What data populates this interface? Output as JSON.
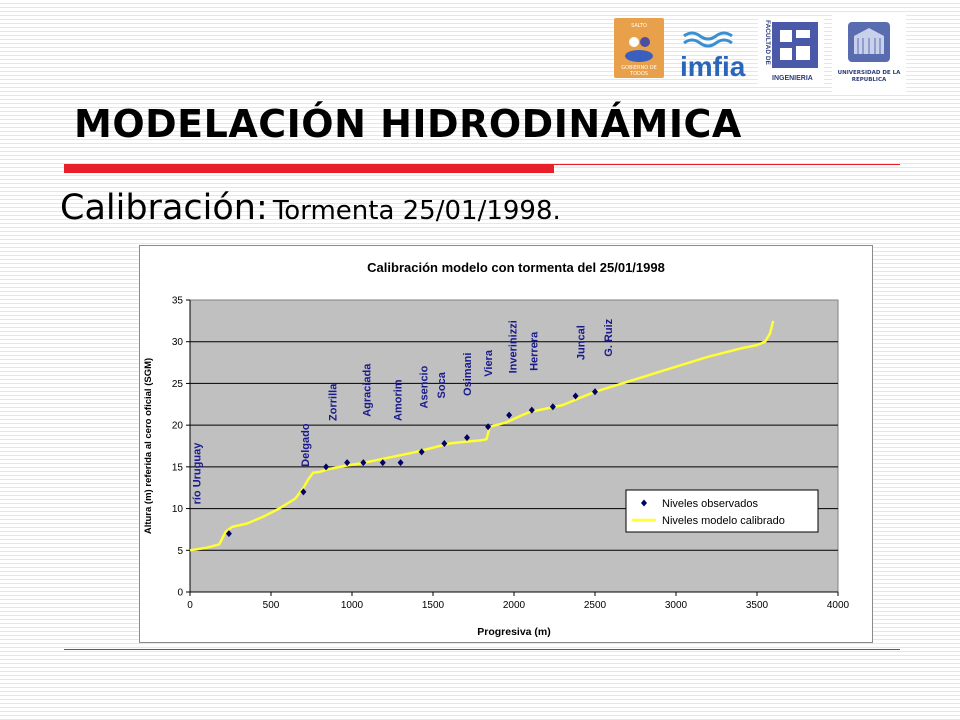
{
  "slide": {
    "title": "MODELACIÓN HIDRODINÁMICA",
    "subtitle_main": "Calibración:",
    "subtitle_detail": "Tormenta 25/01/1998."
  },
  "logos": {
    "salto_top": "SALTO",
    "salto_bottom": "GOBIERNO DE TODOS",
    "imfia": "imfia",
    "fing_side": "FACULTAD DE",
    "fing_label": "INGENIERIA",
    "udelar": "UNIVERSIDAD DE LA REPUBLICA"
  },
  "colors": {
    "accent": "#e8202a",
    "plot_bg": "#c0c0c0",
    "model_line": "#ffff33",
    "observed_marker": "#000066",
    "station_label": "#1a1a8c"
  },
  "chart_data": {
    "type": "line",
    "title": "Calibración modelo con tormenta del 25/01/1998",
    "xlabel": "Progresiva (m)",
    "ylabel": "Altura (m) referida al cero oficial (SGM)",
    "xlim": [
      0,
      4000
    ],
    "ylim": [
      0,
      35
    ],
    "xticks": [
      0,
      500,
      1000,
      1500,
      2000,
      2500,
      3000,
      3500,
      4000
    ],
    "yticks": [
      0,
      5,
      10,
      15,
      20,
      25,
      30,
      35
    ],
    "grid": true,
    "legend_position": "bottom-right",
    "series": [
      {
        "name": "Niveles observados",
        "kind": "scatter",
        "x": [
          240,
          700,
          840,
          970,
          1070,
          1190,
          1300,
          1430,
          1570,
          1710,
          1840,
          1970,
          2110,
          2240,
          2380,
          2500
        ],
        "y": [
          7,
          12,
          15,
          15.5,
          15.5,
          15.5,
          15.5,
          16.8,
          17.8,
          18.5,
          19.8,
          21.2,
          21.8,
          22.2,
          23.5,
          24
        ]
      },
      {
        "name": "Niveles modelo calibrado",
        "kind": "line",
        "x": [
          0,
          100,
          180,
          220,
          260,
          350,
          450,
          550,
          650,
          700,
          730,
          760,
          800,
          850,
          950,
          1050,
          1150,
          1250,
          1300,
          1400,
          1500,
          1600,
          1700,
          1800,
          1830,
          1850,
          1950,
          2050,
          2100,
          2200,
          2300,
          2400,
          2500,
          2600,
          2700,
          2800,
          2900,
          3000,
          3100,
          3200,
          3300,
          3400,
          3500,
          3550,
          3580,
          3600
        ],
        "y": [
          5,
          5.3,
          5.7,
          7.2,
          7.8,
          8.2,
          9,
          10,
          11.2,
          12.5,
          13.5,
          14.3,
          14.4,
          14.7,
          15.1,
          15.4,
          15.8,
          16.2,
          16.4,
          16.8,
          17.3,
          17.8,
          18,
          18.2,
          18.3,
          19.8,
          20.3,
          21.2,
          21.6,
          22,
          22.4,
          23.2,
          24,
          24.6,
          25.2,
          25.8,
          26.4,
          27,
          27.6,
          28.2,
          28.7,
          29.2,
          29.6,
          30,
          31,
          32.5
        ]
      }
    ],
    "station_labels": [
      {
        "text": "río Uruguay",
        "x": 40
      },
      {
        "text": "Delgado",
        "x": 710
      },
      {
        "text": "Zorrilla",
        "x": 880
      },
      {
        "text": "Agraciada",
        "x": 1090
      },
      {
        "text": "Amorim",
        "x": 1280
      },
      {
        "text": "Asencio",
        "x": 1440
      },
      {
        "text": "Soca",
        "x": 1550
      },
      {
        "text": "Osimani",
        "x": 1710
      },
      {
        "text": "Viera",
        "x": 1840
      },
      {
        "text": "Inverinizzi",
        "x": 1990
      },
      {
        "text": "Herrera",
        "x": 2120
      },
      {
        "text": "Juncal",
        "x": 2410
      },
      {
        "text": "G. Ruiz",
        "x": 2580
      }
    ]
  }
}
